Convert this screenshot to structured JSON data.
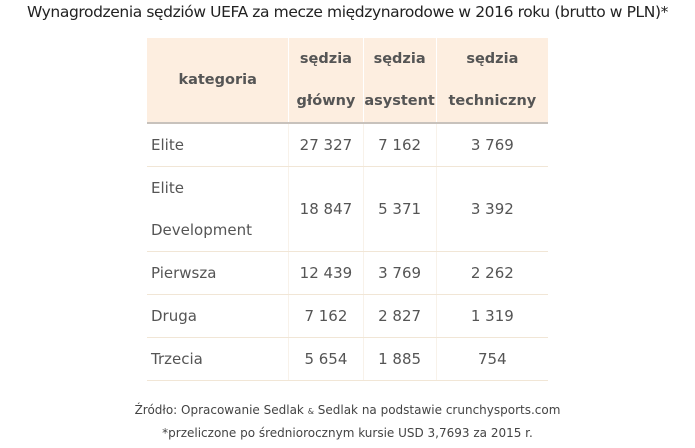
{
  "title": "Wynagrodzenia sędziów UEFA za mecze międzynarodowe w 2016 roku (brutto w PLN)*",
  "chart_data": {
    "type": "table",
    "title": "Wynagrodzenia sędziów UEFA za mecze międzynarodowe w 2016 roku (brutto w PLN)*",
    "columns": [
      {
        "line1": "kategoria",
        "line2": ""
      },
      {
        "line1": "sędzia",
        "line2": "główny"
      },
      {
        "line1": "sędzia",
        "line2": "asystent"
      },
      {
        "line1": "sędzia",
        "line2": "techniczny"
      }
    ],
    "rows": [
      {
        "category": "Elite",
        "category2": "",
        "values": [
          "27 327",
          "7 162",
          "3 769"
        ]
      },
      {
        "category": "Elite",
        "category2": "Development",
        "values": [
          "18 847",
          "5 371",
          "3 392"
        ]
      },
      {
        "category": "Pierwsza",
        "category2": "",
        "values": [
          "12 439",
          "3 769",
          "2 262"
        ]
      },
      {
        "category": "Druga",
        "category2": "",
        "values": [
          "7 162",
          "2 827",
          "1 319"
        ]
      },
      {
        "category": "Trzecia",
        "category2": "",
        "values": [
          "5 654",
          "1 885",
          "754"
        ]
      }
    ],
    "header_color": "#fdeee0"
  },
  "footer": {
    "source_prefix": "Źródło: Opracowanie Sedlak ",
    "amp": "&",
    "source_suffix": " Sedlak na podstawie crunchysports.com",
    "note": "*przeliczone po średniorocznym kursie USD 3,7693 za 2015 r."
  }
}
